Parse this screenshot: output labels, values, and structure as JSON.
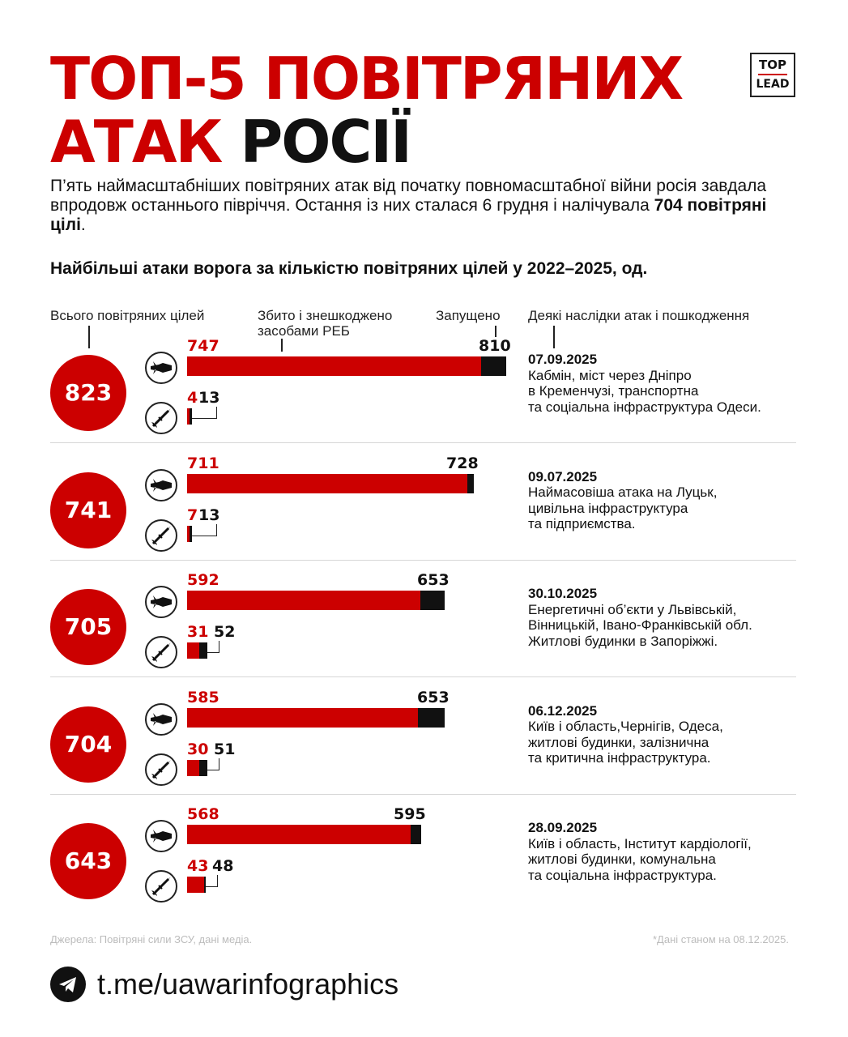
{
  "title": {
    "line1": "ТОП-5 ПОВІТРЯНИХ",
    "line2_red": "АТАК",
    "line2_black": "РОСІЇ"
  },
  "logo": {
    "top": "TOP",
    "bottom": "LEAD"
  },
  "intro": {
    "part1": "П’ять наймасштабніших повітряних атак від початку повномасштабної війни росія завдала впродовж останнього півріччя. Остання із них сталася 6 грудня і налічувала ",
    "bold": "704 повітряні цілі",
    "part2": "."
  },
  "subtitle": "Найбільші атаки ворога за кількістю повітряних цілей у 2022–2025, од.",
  "headers": {
    "total": "Всього повітряних цілей",
    "shot": "Збито і знешкоджено засобами РЕБ",
    "launched": "Запущено",
    "consequences": "Деякі наслідки атак і пошкодження"
  },
  "chart_data": {
    "type": "bar",
    "title": "Найбільші атаки ворога за кількістю повітряних цілей у 2022–2025, од.",
    "attacks": [
      {
        "total": "823",
        "drones_shot": 747,
        "drones_launched": 810,
        "missiles_shot": 4,
        "missiles_launched": 13,
        "date": "07.09.2025",
        "notes": [
          "Кабмін, міст через Дніпро",
          "в Кременчузі, транспортна",
          "та соціальна інфраструктура Одеси."
        ]
      },
      {
        "total": "741",
        "drones_shot": 711,
        "drones_launched": 728,
        "missiles_shot": 7,
        "missiles_launched": 13,
        "date": "09.07.2025",
        "notes": [
          "Наймасовіша атака на Луцьк,",
          "цивільна інфраструктура",
          "та підприємства."
        ]
      },
      {
        "total": "705",
        "drones_shot": 592,
        "drones_launched": 653,
        "missiles_shot": 31,
        "missiles_launched": 52,
        "date": "30.10.2025",
        "notes": [
          "Енергетичні об’єкти у Львівській,",
          "Вінницькій, Івано-Франківській обл.",
          "Житлові будинки в Запоріжжі."
        ]
      },
      {
        "total": "704",
        "drones_shot": 585,
        "drones_launched": 653,
        "missiles_shot": 30,
        "missiles_launched": 51,
        "date": "06.12.2025",
        "notes": [
          "Київ і область,Чернігів, Одеса,",
          "житлові будинки, залізнична",
          "та критична інфраструктура."
        ]
      },
      {
        "total": "643",
        "drones_shot": 568,
        "drones_launched": 595,
        "missiles_shot": 43,
        "missiles_launched": 48,
        "date": "28.09.2025",
        "notes": [
          "Київ і область, Інститут кардіології,",
          "житлові будинки, комунальна",
          "та соціальна інфраструктура."
        ]
      }
    ],
    "scale_max": 810,
    "colors": {
      "shot": "#cc0000",
      "launched_remainder": "#111111"
    }
  },
  "footer": {
    "source": "Джерела: Повітряні сили ЗСУ, дані медіа.",
    "as_of": "*Дані станом на 08.12.2025.",
    "link": "t.me/uawarinfographics",
    "icon": "telegram-icon"
  }
}
